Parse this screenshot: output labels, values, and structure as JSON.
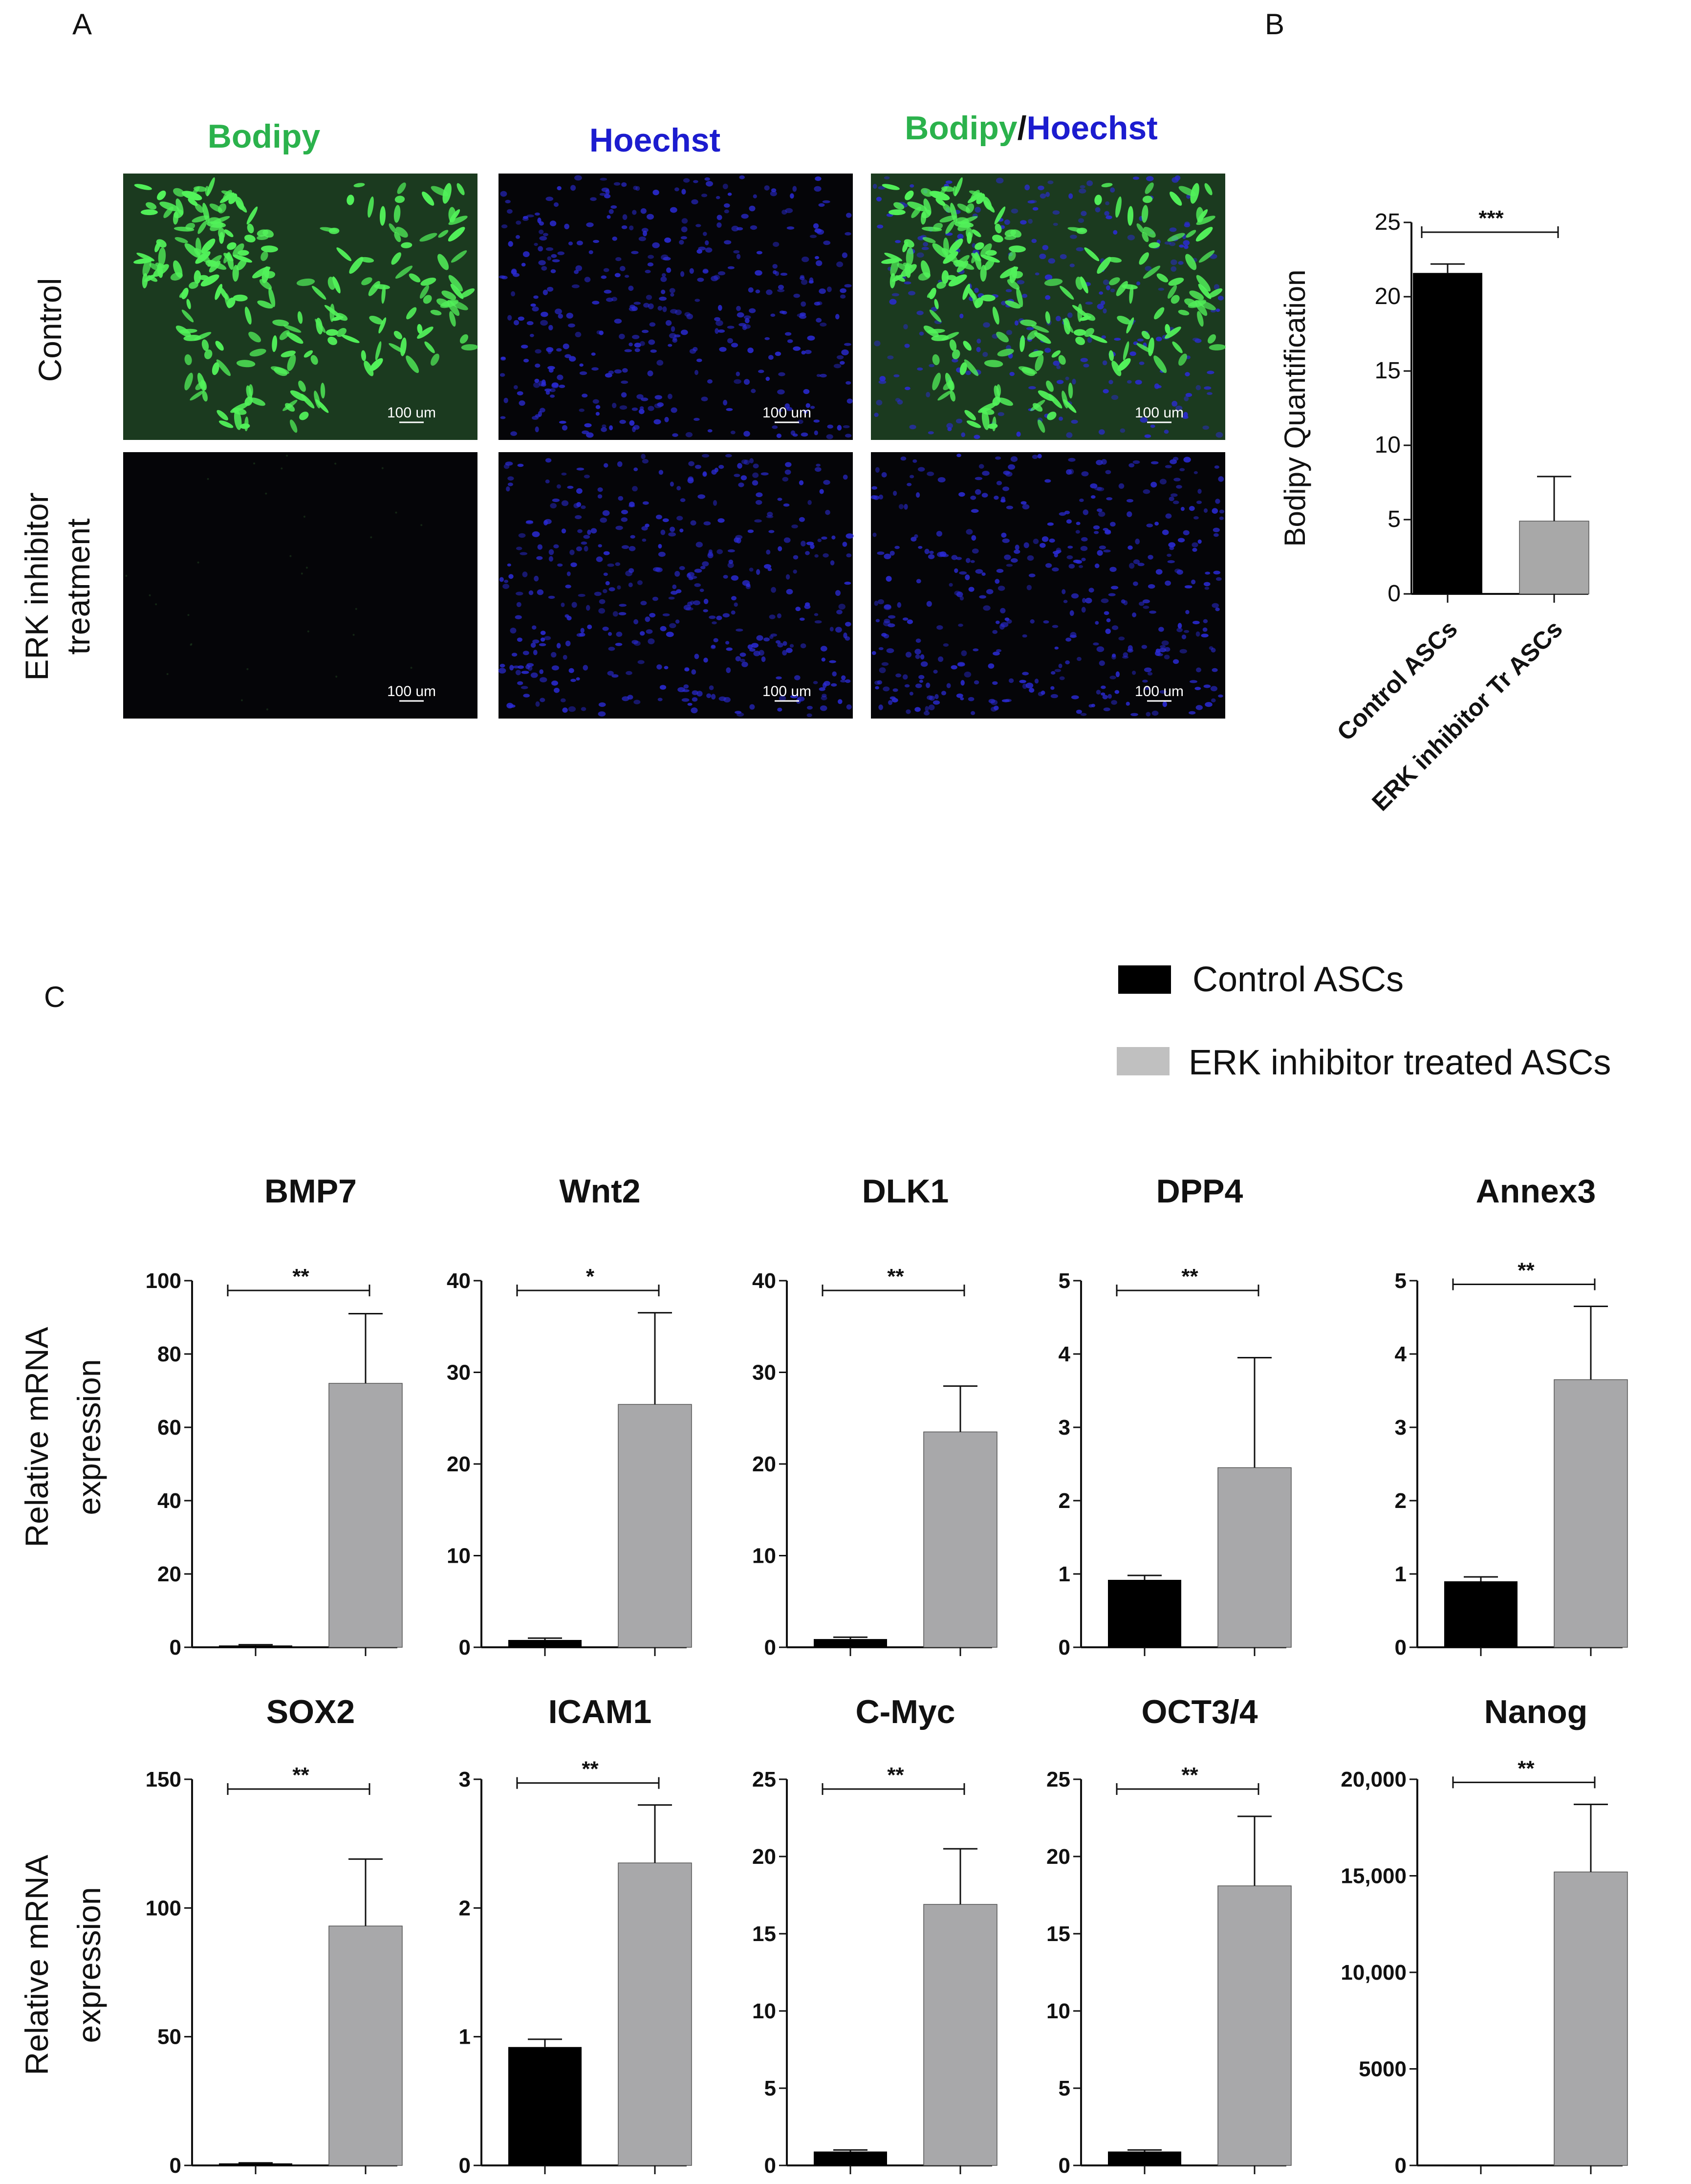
{
  "panels": {
    "A": "A",
    "B": "B",
    "C": "C"
  },
  "microscopy": {
    "columns": [
      {
        "label": "Bodipy",
        "color": "#2bb24c"
      },
      {
        "label": "Hoechst",
        "color": "#1c1ccf"
      }
    ],
    "merged_label": {
      "part1": "Bodipy",
      "sep": "/",
      "part2": "Hoechst"
    },
    "rows": [
      {
        "label_lines": [
          "Control"
        ]
      },
      {
        "label_lines": [
          "ERK inhibitor",
          "treatment"
        ]
      }
    ],
    "scale_bar": "100 um"
  },
  "legend": {
    "control": {
      "label": "Control ASCs",
      "color": "#000000"
    },
    "treated": {
      "label": "ERK inhibitor treated ASCs",
      "color": "#c0c0c0"
    }
  },
  "gene_ylabel": [
    "Relative mRNA",
    "expression"
  ],
  "chart_data": [
    {
      "type": "bar",
      "panel": "B",
      "ylabel": "Bodipy Quantification",
      "categories": [
        "Control ASCs",
        "ERK inhibitor Tr ASCs"
      ],
      "values": [
        21.6,
        4.9
      ],
      "errors": [
        0.6,
        3.0
      ],
      "colors": [
        "#000000",
        "#a8a8a8"
      ],
      "ylim": [
        0,
        25
      ],
      "yticks": [
        "0",
        "5",
        "10",
        "15",
        "20",
        "25"
      ],
      "significance": "***"
    },
    {
      "type": "bar",
      "title": "BMP7",
      "values": [
        0.5,
        72
      ],
      "errors": [
        0.2,
        19
      ],
      "ylim": [
        0,
        100
      ],
      "yticks": [
        "0",
        "20",
        "40",
        "60",
        "80",
        "100"
      ],
      "significance": "**"
    },
    {
      "type": "bar",
      "title": "Wnt2",
      "values": [
        0.8,
        26.5
      ],
      "errors": [
        0.2,
        10
      ],
      "ylim": [
        0,
        40
      ],
      "yticks": [
        "0",
        "10",
        "20",
        "30",
        "40"
      ],
      "significance": "*"
    },
    {
      "type": "bar",
      "title": "DLK1",
      "values": [
        0.9,
        23.5
      ],
      "errors": [
        0.2,
        5
      ],
      "ylim": [
        0,
        40
      ],
      "yticks": [
        "0",
        "10",
        "20",
        "30",
        "40"
      ],
      "significance": "**"
    },
    {
      "type": "bar",
      "title": "DPP4",
      "values": [
        0.92,
        2.45
      ],
      "errors": [
        0.06,
        1.5
      ],
      "ylim": [
        0,
        5
      ],
      "yticks": [
        "0",
        "1",
        "2",
        "3",
        "4",
        "5"
      ],
      "significance": "**"
    },
    {
      "type": "bar",
      "title": "Annex3",
      "values": [
        0.9,
        3.65
      ],
      "errors": [
        0.06,
        1.0
      ],
      "ylim": [
        0,
        5
      ],
      "yticks": [
        "0",
        "1",
        "2",
        "3",
        "4",
        "5"
      ],
      "significance": "**"
    },
    {
      "type": "bar",
      "title": "SOX2",
      "values": [
        0.8,
        93
      ],
      "errors": [
        0.2,
        26
      ],
      "ylim": [
        0,
        150
      ],
      "yticks": [
        "0",
        "50",
        "100",
        "150"
      ],
      "significance": "**"
    },
    {
      "type": "bar",
      "title": "ICAM1",
      "values": [
        0.92,
        2.35
      ],
      "errors": [
        0.06,
        0.45
      ],
      "ylim": [
        0,
        3
      ],
      "yticks": [
        "0",
        "1",
        "2",
        "3"
      ],
      "significance": "**"
    },
    {
      "type": "bar",
      "title": "C-Myc",
      "values": [
        0.9,
        16.9
      ],
      "errors": [
        0.1,
        3.6
      ],
      "ylim": [
        0,
        25
      ],
      "yticks": [
        "0",
        "5",
        "10",
        "15",
        "20",
        "25"
      ],
      "significance": "**"
    },
    {
      "type": "bar",
      "title": "OCT3/4",
      "values": [
        0.9,
        18.1
      ],
      "errors": [
        0.1,
        4.5
      ],
      "ylim": [
        0,
        25
      ],
      "yticks": [
        "0",
        "5",
        "10",
        "15",
        "20",
        "25"
      ],
      "significance": "**"
    },
    {
      "type": "bar",
      "title": "Nanog",
      "values": [
        1,
        15200
      ],
      "errors": [
        0,
        3500
      ],
      "ylim": [
        0,
        20000
      ],
      "yticks": [
        "0",
        "5000",
        "10,000",
        "15,000",
        "20,000"
      ],
      "significance": "**"
    }
  ]
}
